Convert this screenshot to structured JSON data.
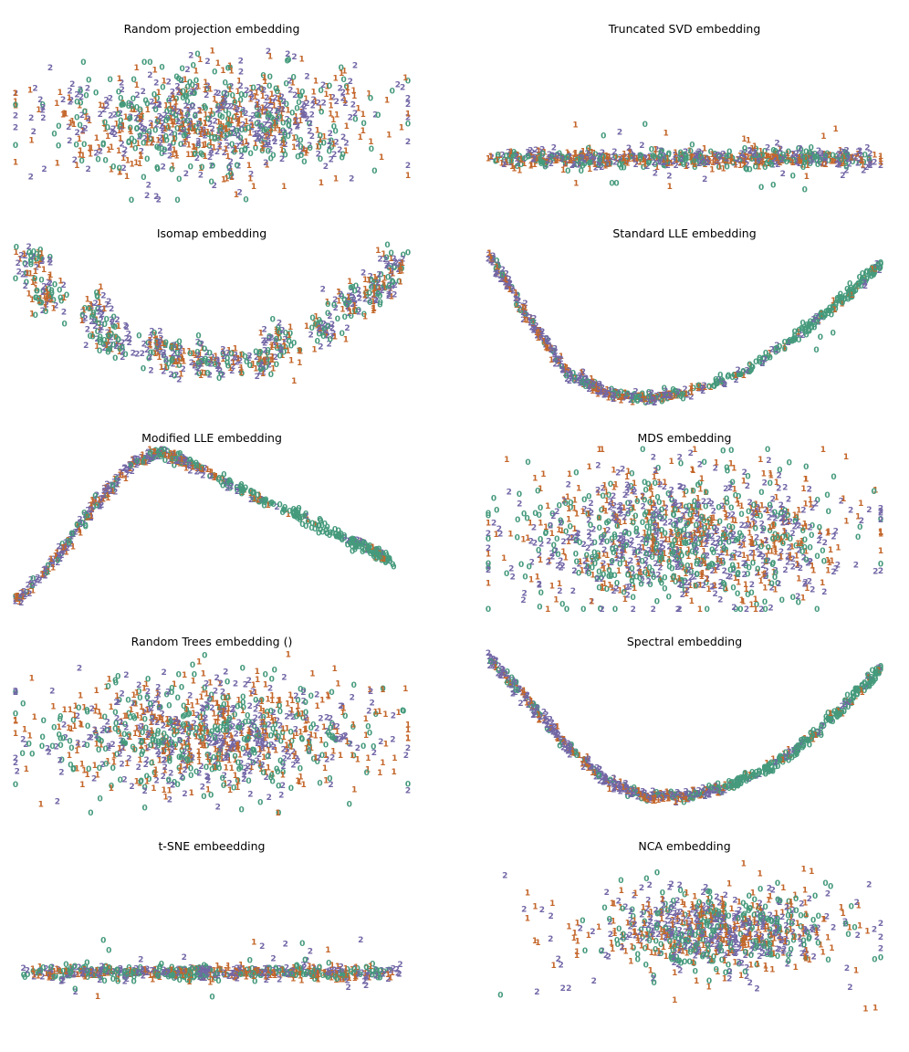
{
  "figure": {
    "class_colors": {
      "0": "#459a7c",
      "1": "#c4662a",
      "2": "#7266a6"
    },
    "class_labels": [
      "0",
      "1",
      "2"
    ]
  },
  "chart_data": [
    {
      "type": "scatter",
      "title": "Random projection embedding",
      "shape": "blob",
      "points": 900,
      "spread": [
        0.95,
        0.75
      ],
      "center": [
        0.5,
        0.52
      ],
      "outliers": 30,
      "xlim": [
        0,
        1
      ],
      "ylim": [
        0,
        1
      ],
      "grid": false,
      "axes": "off"
    },
    {
      "type": "scatter",
      "title": "Truncated SVD embedding",
      "shape": "band",
      "points": 700,
      "spread": [
        1.0,
        0.08
      ],
      "center": [
        0.5,
        0.74
      ],
      "outliers": 35,
      "xlim": [
        0,
        1
      ],
      "ylim": [
        0,
        1
      ],
      "grid": false,
      "axes": "off"
    },
    {
      "type": "scatter",
      "title": "Isomap embedding",
      "shape": "clusters-arc",
      "points": 700,
      "clusters": [
        [
          0.04,
          0.12
        ],
        [
          0.08,
          0.32
        ],
        [
          0.2,
          0.43
        ],
        [
          0.25,
          0.6
        ],
        [
          0.36,
          0.63
        ],
        [
          0.4,
          0.7
        ],
        [
          0.48,
          0.72
        ],
        [
          0.55,
          0.74
        ],
        [
          0.63,
          0.72
        ],
        [
          0.68,
          0.6
        ],
        [
          0.78,
          0.52
        ],
        [
          0.85,
          0.38
        ],
        [
          0.92,
          0.28
        ],
        [
          0.96,
          0.12
        ]
      ],
      "xlim": [
        0,
        1
      ],
      "ylim": [
        0,
        1
      ],
      "grid": false,
      "axes": "off"
    },
    {
      "type": "scatter",
      "title": "Standard LLE embedding",
      "shape": "curve-u",
      "points": 650,
      "curve": [
        [
          0.0,
          0.05
        ],
        [
          0.1,
          0.45
        ],
        [
          0.2,
          0.8
        ],
        [
          0.3,
          0.93
        ],
        [
          0.4,
          0.96
        ],
        [
          0.5,
          0.93
        ],
        [
          0.65,
          0.8
        ],
        [
          0.8,
          0.55
        ],
        [
          0.9,
          0.35
        ],
        [
          1.0,
          0.12
        ]
      ],
      "outliers": 3,
      "xlim": [
        0,
        1
      ],
      "ylim": [
        0,
        1
      ],
      "grid": false,
      "axes": "off"
    },
    {
      "type": "scatter",
      "title": "Modified LLE embedding",
      "shape": "curve-lambda",
      "points": 600,
      "curve": [
        [
          0.0,
          0.95
        ],
        [
          0.1,
          0.7
        ],
        [
          0.2,
          0.35
        ],
        [
          0.3,
          0.08
        ],
        [
          0.37,
          0.02
        ],
        [
          0.45,
          0.1
        ],
        [
          0.6,
          0.28
        ],
        [
          0.75,
          0.45
        ],
        [
          0.9,
          0.62
        ],
        [
          0.95,
          0.7
        ]
      ],
      "outliers": 8,
      "xlim": [
        0,
        1
      ],
      "ylim": [
        0,
        1
      ],
      "grid": false,
      "axes": "off"
    },
    {
      "type": "scatter",
      "title": "MDS embedding",
      "shape": "blob",
      "points": 1200,
      "spread": [
        0.95,
        0.95
      ],
      "center": [
        0.5,
        0.55
      ],
      "outliers": 10,
      "xlim": [
        0,
        1
      ],
      "ylim": [
        0,
        1
      ],
      "grid": false,
      "axes": "off"
    },
    {
      "type": "scatter",
      "title": "Random Trees embedding ()",
      "shape": "blob",
      "points": 1000,
      "spread": [
        0.95,
        0.8
      ],
      "center": [
        0.5,
        0.52
      ],
      "outliers": 8,
      "xlim": [
        0,
        1
      ],
      "ylim": [
        0,
        1
      ],
      "grid": false,
      "axes": "off"
    },
    {
      "type": "scatter",
      "title": "Spectral embedding",
      "shape": "curve-u",
      "points": 700,
      "curve": [
        [
          0.0,
          0.02
        ],
        [
          0.1,
          0.3
        ],
        [
          0.2,
          0.58
        ],
        [
          0.3,
          0.8
        ],
        [
          0.4,
          0.9
        ],
        [
          0.5,
          0.9
        ],
        [
          0.6,
          0.84
        ],
        [
          0.7,
          0.74
        ],
        [
          0.8,
          0.58
        ],
        [
          0.9,
          0.35
        ],
        [
          1.0,
          0.1
        ]
      ],
      "outliers": 0,
      "xlim": [
        0,
        1
      ],
      "ylim": [
        0,
        1
      ],
      "grid": false,
      "axes": "off"
    },
    {
      "type": "scatter",
      "title": "t-SNE embeedding",
      "shape": "band",
      "points": 650,
      "spread": [
        0.95,
        0.06
      ],
      "center": [
        0.5,
        0.72
      ],
      "outliers": 30,
      "xlim": [
        0,
        1
      ],
      "ylim": [
        0,
        1
      ],
      "grid": false,
      "axes": "off"
    },
    {
      "type": "scatter",
      "title": "NCA embedding",
      "shape": "blob",
      "points": 800,
      "spread": [
        0.7,
        0.55
      ],
      "center": [
        0.58,
        0.45
      ],
      "outliers": 40,
      "xlim": [
        0,
        1
      ],
      "ylim": [
        0,
        1
      ],
      "grid": false,
      "axes": "off"
    }
  ]
}
